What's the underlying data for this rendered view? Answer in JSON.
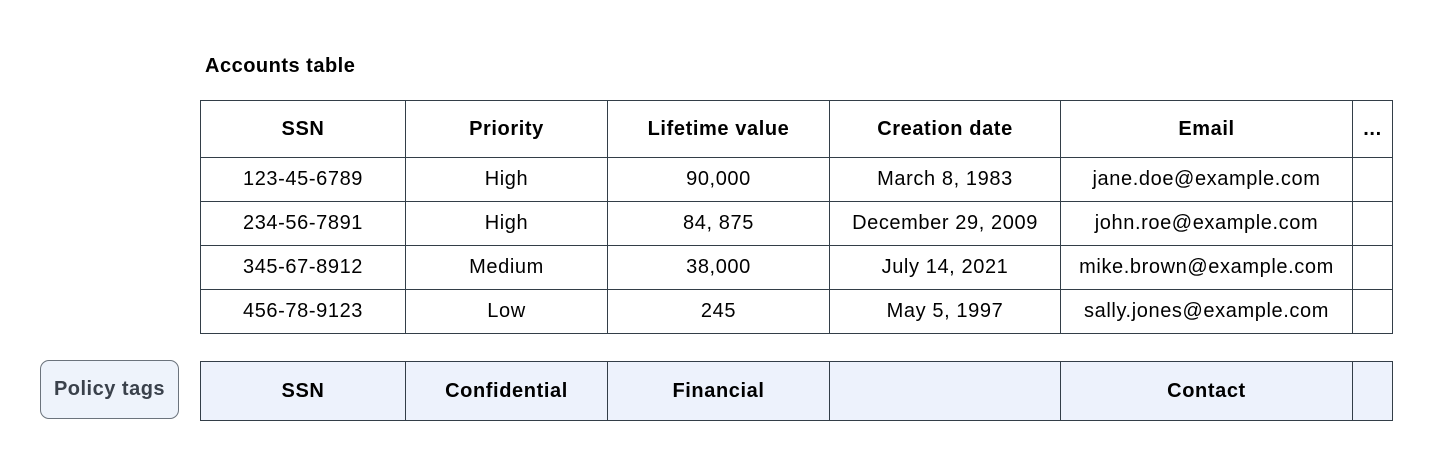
{
  "title": "Accounts table",
  "table": {
    "columns": [
      "SSN",
      "Priority",
      "Lifetime value",
      "Creation date",
      "Email",
      "..."
    ],
    "rows": [
      [
        "123-45-6789",
        "High",
        "90,000",
        "March 8, 1983",
        "jane.doe@example.com",
        ""
      ],
      [
        "234-56-7891",
        "High",
        "84, 875",
        "December 29, 2009",
        "john.roe@example.com",
        ""
      ],
      [
        "345-67-8912",
        "Medium",
        "38,000",
        "July 14, 2021",
        "mike.brown@example.com",
        ""
      ],
      [
        "456-78-9123",
        "Low",
        "245",
        "May 5, 1997",
        "sally.jones@example.com",
        ""
      ]
    ]
  },
  "policy": {
    "label": "Policy tags",
    "tags": [
      "SSN",
      "Confidential",
      "Financial",
      "",
      "Contact",
      ""
    ]
  },
  "colors": {
    "table_border": "#333e48",
    "policy_cell_background": "#edf2fc",
    "policy_chip_background": "#eef3fb",
    "policy_chip_border": "#6b737c",
    "policy_chip_text": "#3a414b",
    "text": "#000000",
    "background": "#ffffff"
  }
}
